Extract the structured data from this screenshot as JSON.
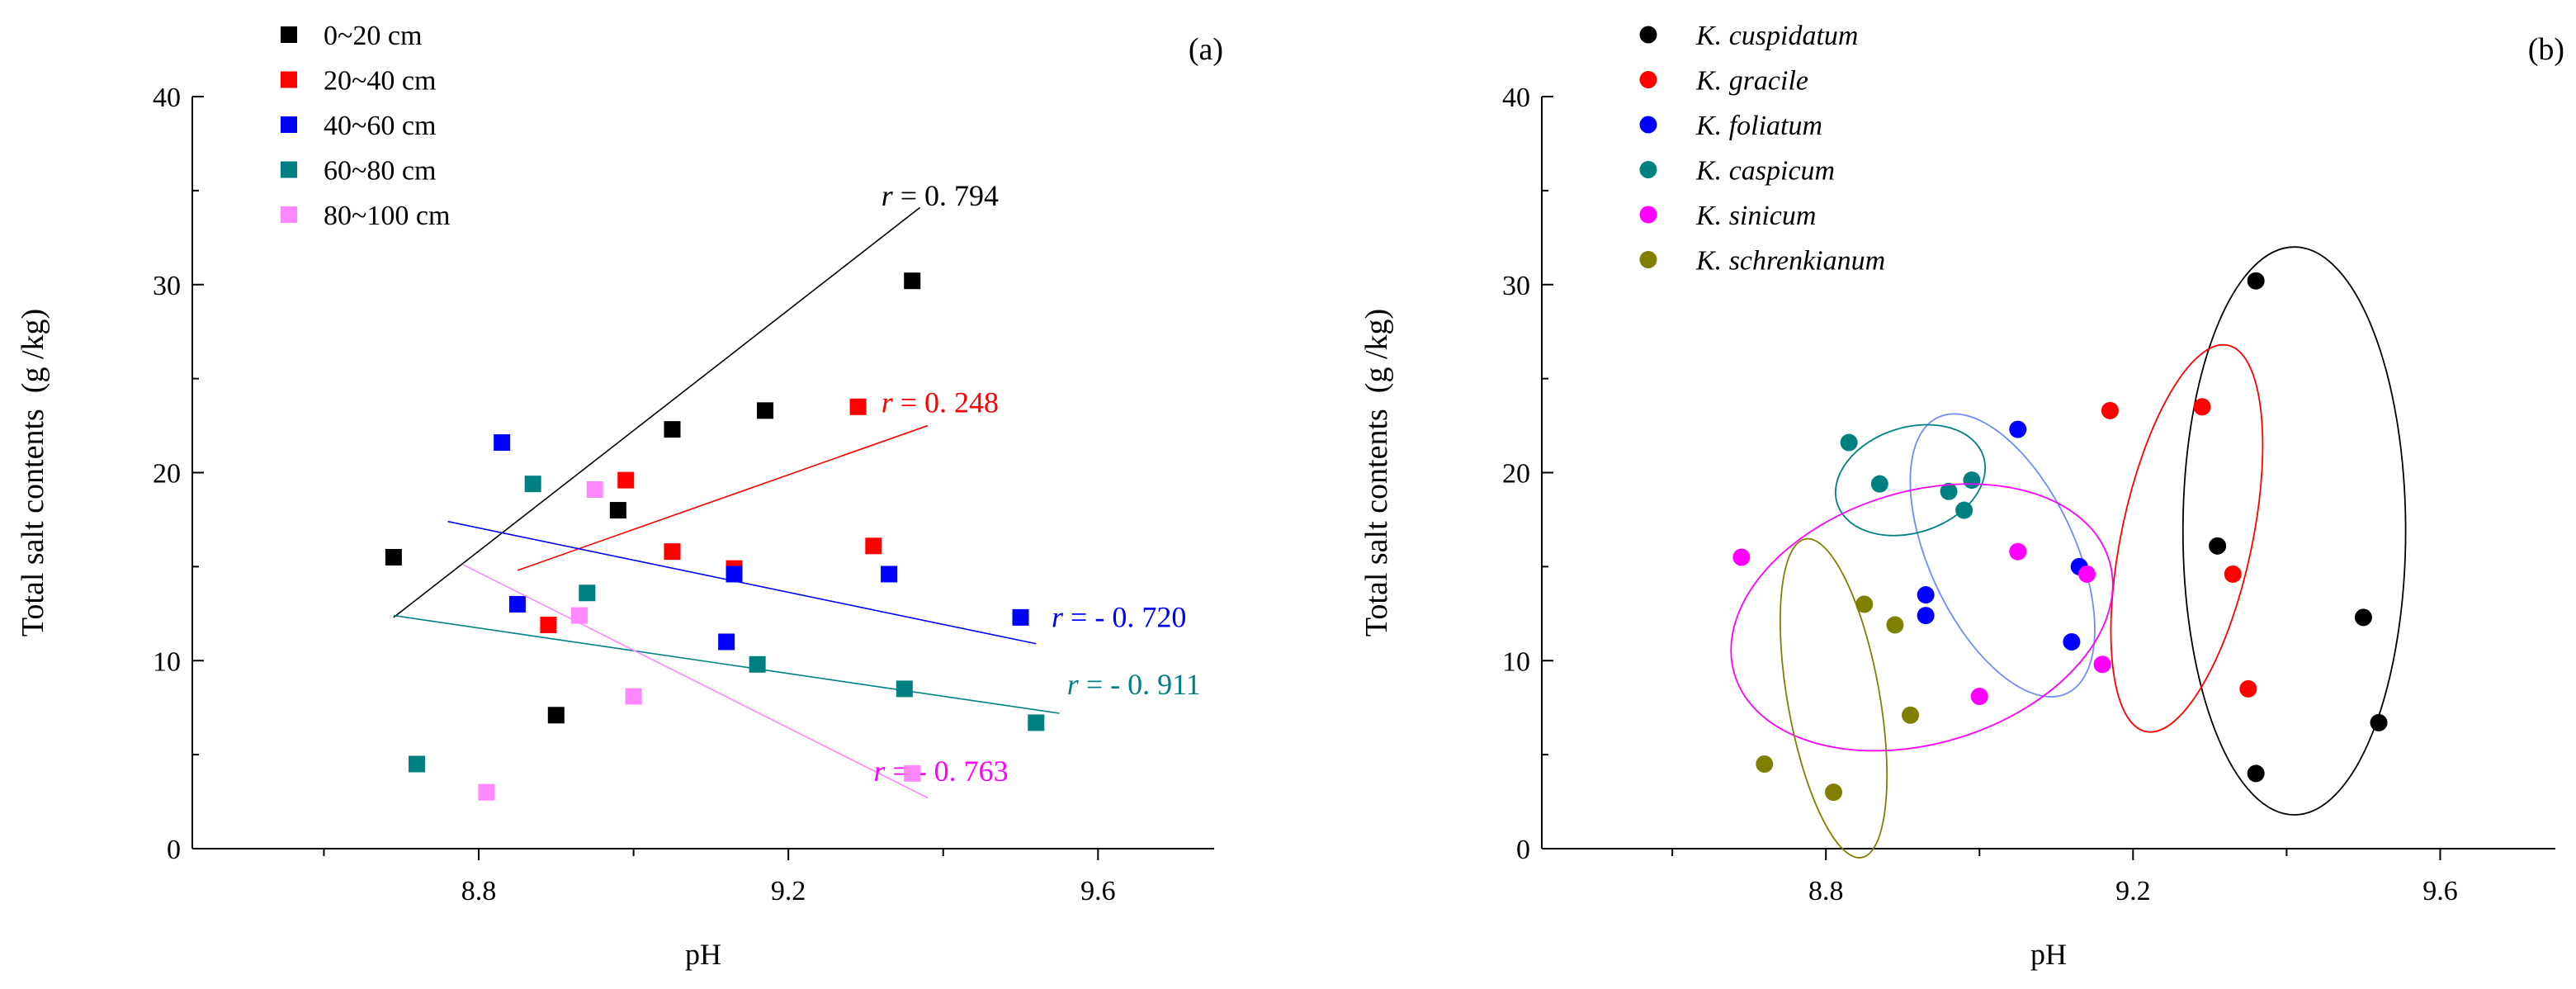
{
  "colors": {
    "black": "#000000",
    "red": "#ff0000",
    "blue": "#0000ff",
    "teal": "#008080",
    "pink": "#ff88ff",
    "magenta": "#ff00ff",
    "olive": "#808000",
    "light_blue": "#6f8cff",
    "axis": "#000000"
  },
  "chart_data": [
    {
      "type": "scatter",
      "panel_label": "(a)",
      "xlabel": "pH",
      "ylabel": "Total salt contents  (g /kg)",
      "xlim": [
        8.43,
        9.75
      ],
      "ylim": [
        0,
        40
      ],
      "xticks": [
        8.8,
        9.2,
        9.6
      ],
      "xtick_labels": [
        "8.8",
        "9.2",
        "9.6"
      ],
      "yticks": [
        0,
        10,
        20,
        30,
        40
      ],
      "ytick_labels": [
        "0",
        "10",
        "20",
        "30",
        "40"
      ],
      "legend_position": "top-left",
      "marker": "square",
      "series": [
        {
          "name": "0~20 cm",
          "color": "#000000",
          "x": [
            8.69,
            8.9,
            8.98,
            9.05,
            9.17,
            9.36
          ],
          "y": [
            15.5,
            7.1,
            18.0,
            22.3,
            23.3,
            30.2
          ],
          "fit": {
            "x": [
              8.69,
              9.37
            ],
            "y": [
              12.3,
              34.1
            ]
          },
          "r_label": "r",
          "r_value": "= 0. 794",
          "r_anchor": [
            9.32,
            34.2
          ]
        },
        {
          "name": "20~40 cm",
          "color": "#ff0000",
          "x": [
            8.89,
            8.99,
            9.05,
            9.13,
            9.29,
            9.31
          ],
          "y": [
            11.9,
            19.6,
            15.8,
            14.9,
            23.5,
            16.1
          ],
          "fit": {
            "x": [
              8.85,
              9.38
            ],
            "y": [
              14.8,
              22.5
            ]
          },
          "r_label": "r",
          "r_value": "= 0. 248",
          "r_anchor": [
            9.32,
            23.2
          ]
        },
        {
          "name": "40~60 cm",
          "color": "#0000ff",
          "x": [
            8.83,
            8.85,
            9.12,
            9.13,
            9.33,
            9.5
          ],
          "y": [
            21.6,
            13.0,
            11.0,
            14.6,
            14.6,
            12.3
          ],
          "fit": {
            "x": [
              8.76,
              9.52
            ],
            "y": [
              17.4,
              10.9
            ]
          },
          "r_label": "r",
          "r_value": "= - 0. 720",
          "r_anchor": [
            9.54,
            11.8
          ]
        },
        {
          "name": "60~80 cm",
          "color": "#008080",
          "x": [
            8.72,
            8.87,
            8.94,
            9.16,
            9.35,
            9.52
          ],
          "y": [
            4.5,
            19.4,
            13.6,
            9.8,
            8.5,
            6.7
          ],
          "fit": {
            "x": [
              8.69,
              9.55
            ],
            "y": [
              12.4,
              7.2
            ]
          },
          "r_label": "r",
          "r_value": "= - 0. 911",
          "r_anchor": [
            9.56,
            8.2
          ]
        },
        {
          "name": "80~100 cm",
          "color": "#ff88ff",
          "x": [
            8.81,
            8.93,
            8.95,
            9.0,
            9.36
          ],
          "y": [
            3.0,
            12.4,
            19.1,
            8.1,
            4.0
          ],
          "fit": {
            "x": [
              8.78,
              9.38
            ],
            "y": [
              15.1,
              2.7
            ]
          },
          "r_label": "r",
          "r_value": "= - 0. 763",
          "r_anchor": [
            9.31,
            3.6
          ],
          "r_color": "#ff00ff"
        }
      ]
    },
    {
      "type": "scatter",
      "panel_label": "(b)",
      "xlabel": "pH",
      "ylabel": "Total salt contents  (g /kg)",
      "xlim": [
        8.43,
        9.75
      ],
      "ylim": [
        0,
        40
      ],
      "xticks": [
        8.8,
        9.2,
        9.6
      ],
      "xtick_labels": [
        "8.8",
        "9.2",
        "9.6"
      ],
      "yticks": [
        0,
        10,
        20,
        30,
        40
      ],
      "ytick_labels": [
        "0",
        "10",
        "20",
        "30",
        "40"
      ],
      "legend_position": "top-left",
      "marker": "circle",
      "series": [
        {
          "name_genus": "K.",
          "name_species": "cuspidatum",
          "color": "#000000",
          "x": [
            9.36,
            9.31,
            9.5,
            9.52,
            9.36
          ],
          "y": [
            30.2,
            16.1,
            12.3,
            6.7,
            4.0
          ],
          "ellipse": {
            "cx": 9.41,
            "cy": 16.9,
            "rx": 0.145,
            "ry": 15.1,
            "angle": 0
          }
        },
        {
          "name_genus": "K.",
          "name_species": "gracile",
          "color": "#ff0000",
          "x": [
            9.17,
            9.29,
            9.33,
            9.35
          ],
          "y": [
            23.3,
            23.5,
            14.6,
            8.5
          ],
          "ellipse": {
            "cx": 9.27,
            "cy": 16.5,
            "rx": 0.085,
            "ry": 10.5,
            "angle": -12
          }
        },
        {
          "name_genus": "K.",
          "name_species": "foliatum",
          "color": "#0000ff",
          "x": [
            9.05,
            9.13,
            8.93,
            8.93,
            9.12
          ],
          "y": [
            22.3,
            15.0,
            13.5,
            12.4,
            11.0
          ],
          "ellipse": {
            "cx": 9.03,
            "cy": 15.6,
            "rx": 0.095,
            "ry": 8.1,
            "angle": 25
          }
        },
        {
          "name_genus": "K.",
          "name_species": "caspicum",
          "color": "#008080",
          "x": [
            8.83,
            8.87,
            8.96,
            8.98,
            8.99
          ],
          "y": [
            21.6,
            19.4,
            19.0,
            18.0,
            19.6
          ],
          "ellipse": {
            "cx": 8.91,
            "cy": 19.6,
            "rx": 0.1,
            "ry": 2.8,
            "angle": 18
          }
        },
        {
          "name_genus": "K.",
          "name_species": "sinicum",
          "color": "#ff00ff",
          "x": [
            8.69,
            9.05,
            9.14,
            9.0,
            9.16
          ],
          "y": [
            15.5,
            15.8,
            14.6,
            8.1,
            9.8
          ],
          "ellipse": {
            "cx": 8.925,
            "cy": 12.3,
            "rx": 0.255,
            "ry": 6.7,
            "angle": 17
          }
        },
        {
          "name_genus": "K.",
          "name_species": "schrenkianum",
          "color": "#808000",
          "x": [
            8.85,
            8.89,
            8.91,
            8.72,
            8.81
          ],
          "y": [
            13.0,
            11.9,
            7.1,
            4.5,
            3.0
          ],
          "ellipse": {
            "cx": 8.81,
            "cy": 8.0,
            "rx": 0.06,
            "ry": 8.6,
            "angle": 10
          }
        }
      ]
    }
  ]
}
